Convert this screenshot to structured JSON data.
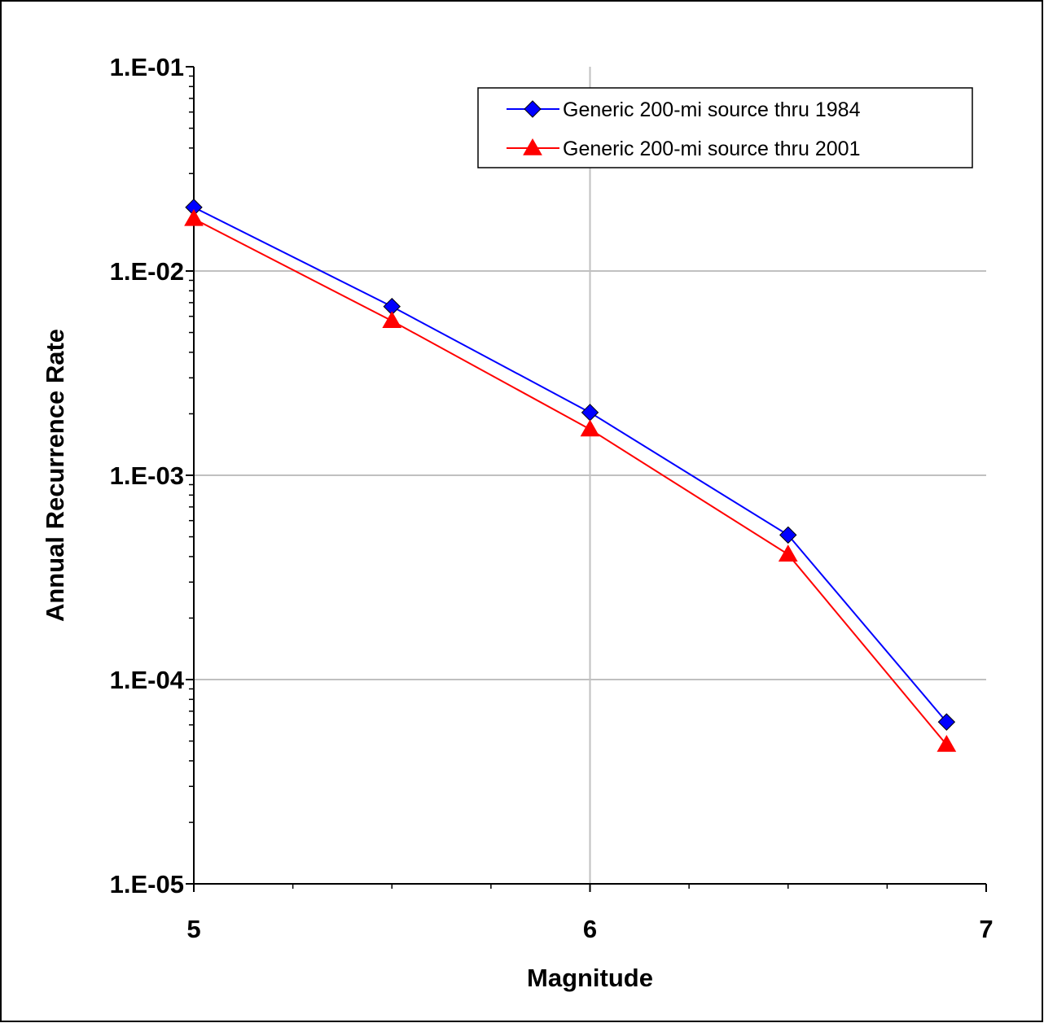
{
  "chart_data": {
    "type": "line",
    "title": "",
    "xlabel": "Magnitude",
    "ylabel": "Annual Recurrence Rate",
    "xlim": [
      5,
      7
    ],
    "ylim": [
      1e-05,
      0.1
    ],
    "yscale": "log",
    "grid": true,
    "legend_position": "top-right",
    "x_ticks": [
      {
        "value": 5,
        "label": "5"
      },
      {
        "value": 6,
        "label": "6"
      },
      {
        "value": 7,
        "label": "7"
      }
    ],
    "y_ticks": [
      {
        "value": 0.1,
        "label": "1.E-01"
      },
      {
        "value": 0.01,
        "label": "1.E-02"
      },
      {
        "value": 0.001,
        "label": "1.E-03"
      },
      {
        "value": 0.0001,
        "label": "1.E-04"
      },
      {
        "value": 1e-05,
        "label": "1.E-05"
      }
    ],
    "series": [
      {
        "name": "Generic 200-mi source thru 1984",
        "color": "#0000FF",
        "marker": "diamond",
        "x": [
          5.0,
          5.5,
          6.0,
          6.5,
          6.9
        ],
        "y": [
          0.0205,
          0.0067,
          0.00203,
          0.00051,
          6.2e-05
        ]
      },
      {
        "name": "Generic 200-mi source thru 2001",
        "color": "#FF0000",
        "marker": "triangle",
        "x": [
          5.0,
          5.5,
          6.0,
          6.5,
          6.9
        ],
        "y": [
          0.018,
          0.0057,
          0.00168,
          0.00041,
          4.8e-05
        ]
      }
    ]
  }
}
